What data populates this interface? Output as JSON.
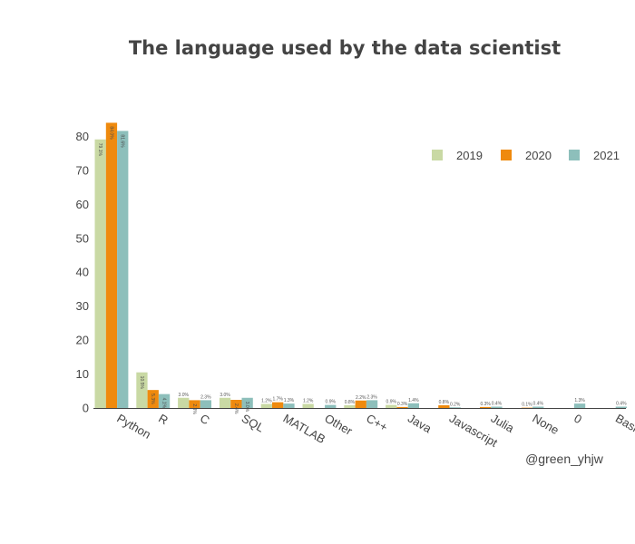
{
  "chart_data": {
    "type": "bar",
    "title": "The language used by the data scientist",
    "xlabel": "",
    "ylabel": "",
    "ylim": [
      0,
      85
    ],
    "yticks": [
      0,
      10,
      20,
      30,
      40,
      50,
      60,
      70,
      80
    ],
    "grid": false,
    "legend_position": "top-right",
    "categories": [
      "Python",
      "R",
      "C",
      "SQL",
      "MATLAB",
      "Other",
      "C++",
      "Java",
      "Javascript",
      "Julia",
      "None",
      "0",
      "Bash"
    ],
    "series": [
      {
        "name": "2019",
        "color": "#c9d9a4",
        "values": [
          79.1,
          10.5,
          3.0,
          3.0,
          1.2,
          1.2,
          0.8,
          0.9,
          null,
          null,
          null,
          null,
          null
        ],
        "labels": [
          "79.1%",
          "10.5%",
          "3.0%",
          "3.0%",
          "1.2%",
          "1.2%",
          "0.8%",
          "0.9%",
          "",
          "",
          "",
          "",
          ""
        ]
      },
      {
        "name": "2020",
        "color": "#ef8a0e",
        "values": [
          84.0,
          5.3,
          2.3,
          2.4,
          1.7,
          null,
          2.2,
          0.3,
          0.8,
          0.3,
          0.1,
          null,
          null
        ],
        "labels": [
          "84.0%",
          "5.3%",
          "2.3%",
          "2.4%",
          "1.7%",
          "",
          "2.2%",
          "0.3%",
          "0.8%",
          "0.3%",
          "0.1%",
          "",
          ""
        ],
        "label_inside": [
          true,
          true,
          true,
          true,
          false,
          false,
          false,
          false,
          false,
          false,
          false,
          false,
          false
        ]
      },
      {
        "name": "2021",
        "color": "#8dbfbb",
        "values": [
          81.6,
          4.1,
          2.3,
          3.0,
          1.3,
          0.9,
          2.3,
          1.4,
          0.2,
          0.4,
          0.4,
          1.3,
          0.4
        ],
        "labels": [
          "81.6%",
          "4.1%",
          "2.3%",
          "3.0%",
          "1.3%",
          "0.9%",
          "2.3%",
          "1.4%",
          "0.2%",
          "0.4%",
          "0.4%",
          "1.3%",
          "0.4%"
        ],
        "label_inside": [
          true,
          true,
          false,
          true,
          false,
          false,
          false,
          false,
          false,
          false,
          false,
          false,
          false
        ]
      }
    ]
  },
  "credit": "@green_yhjw"
}
